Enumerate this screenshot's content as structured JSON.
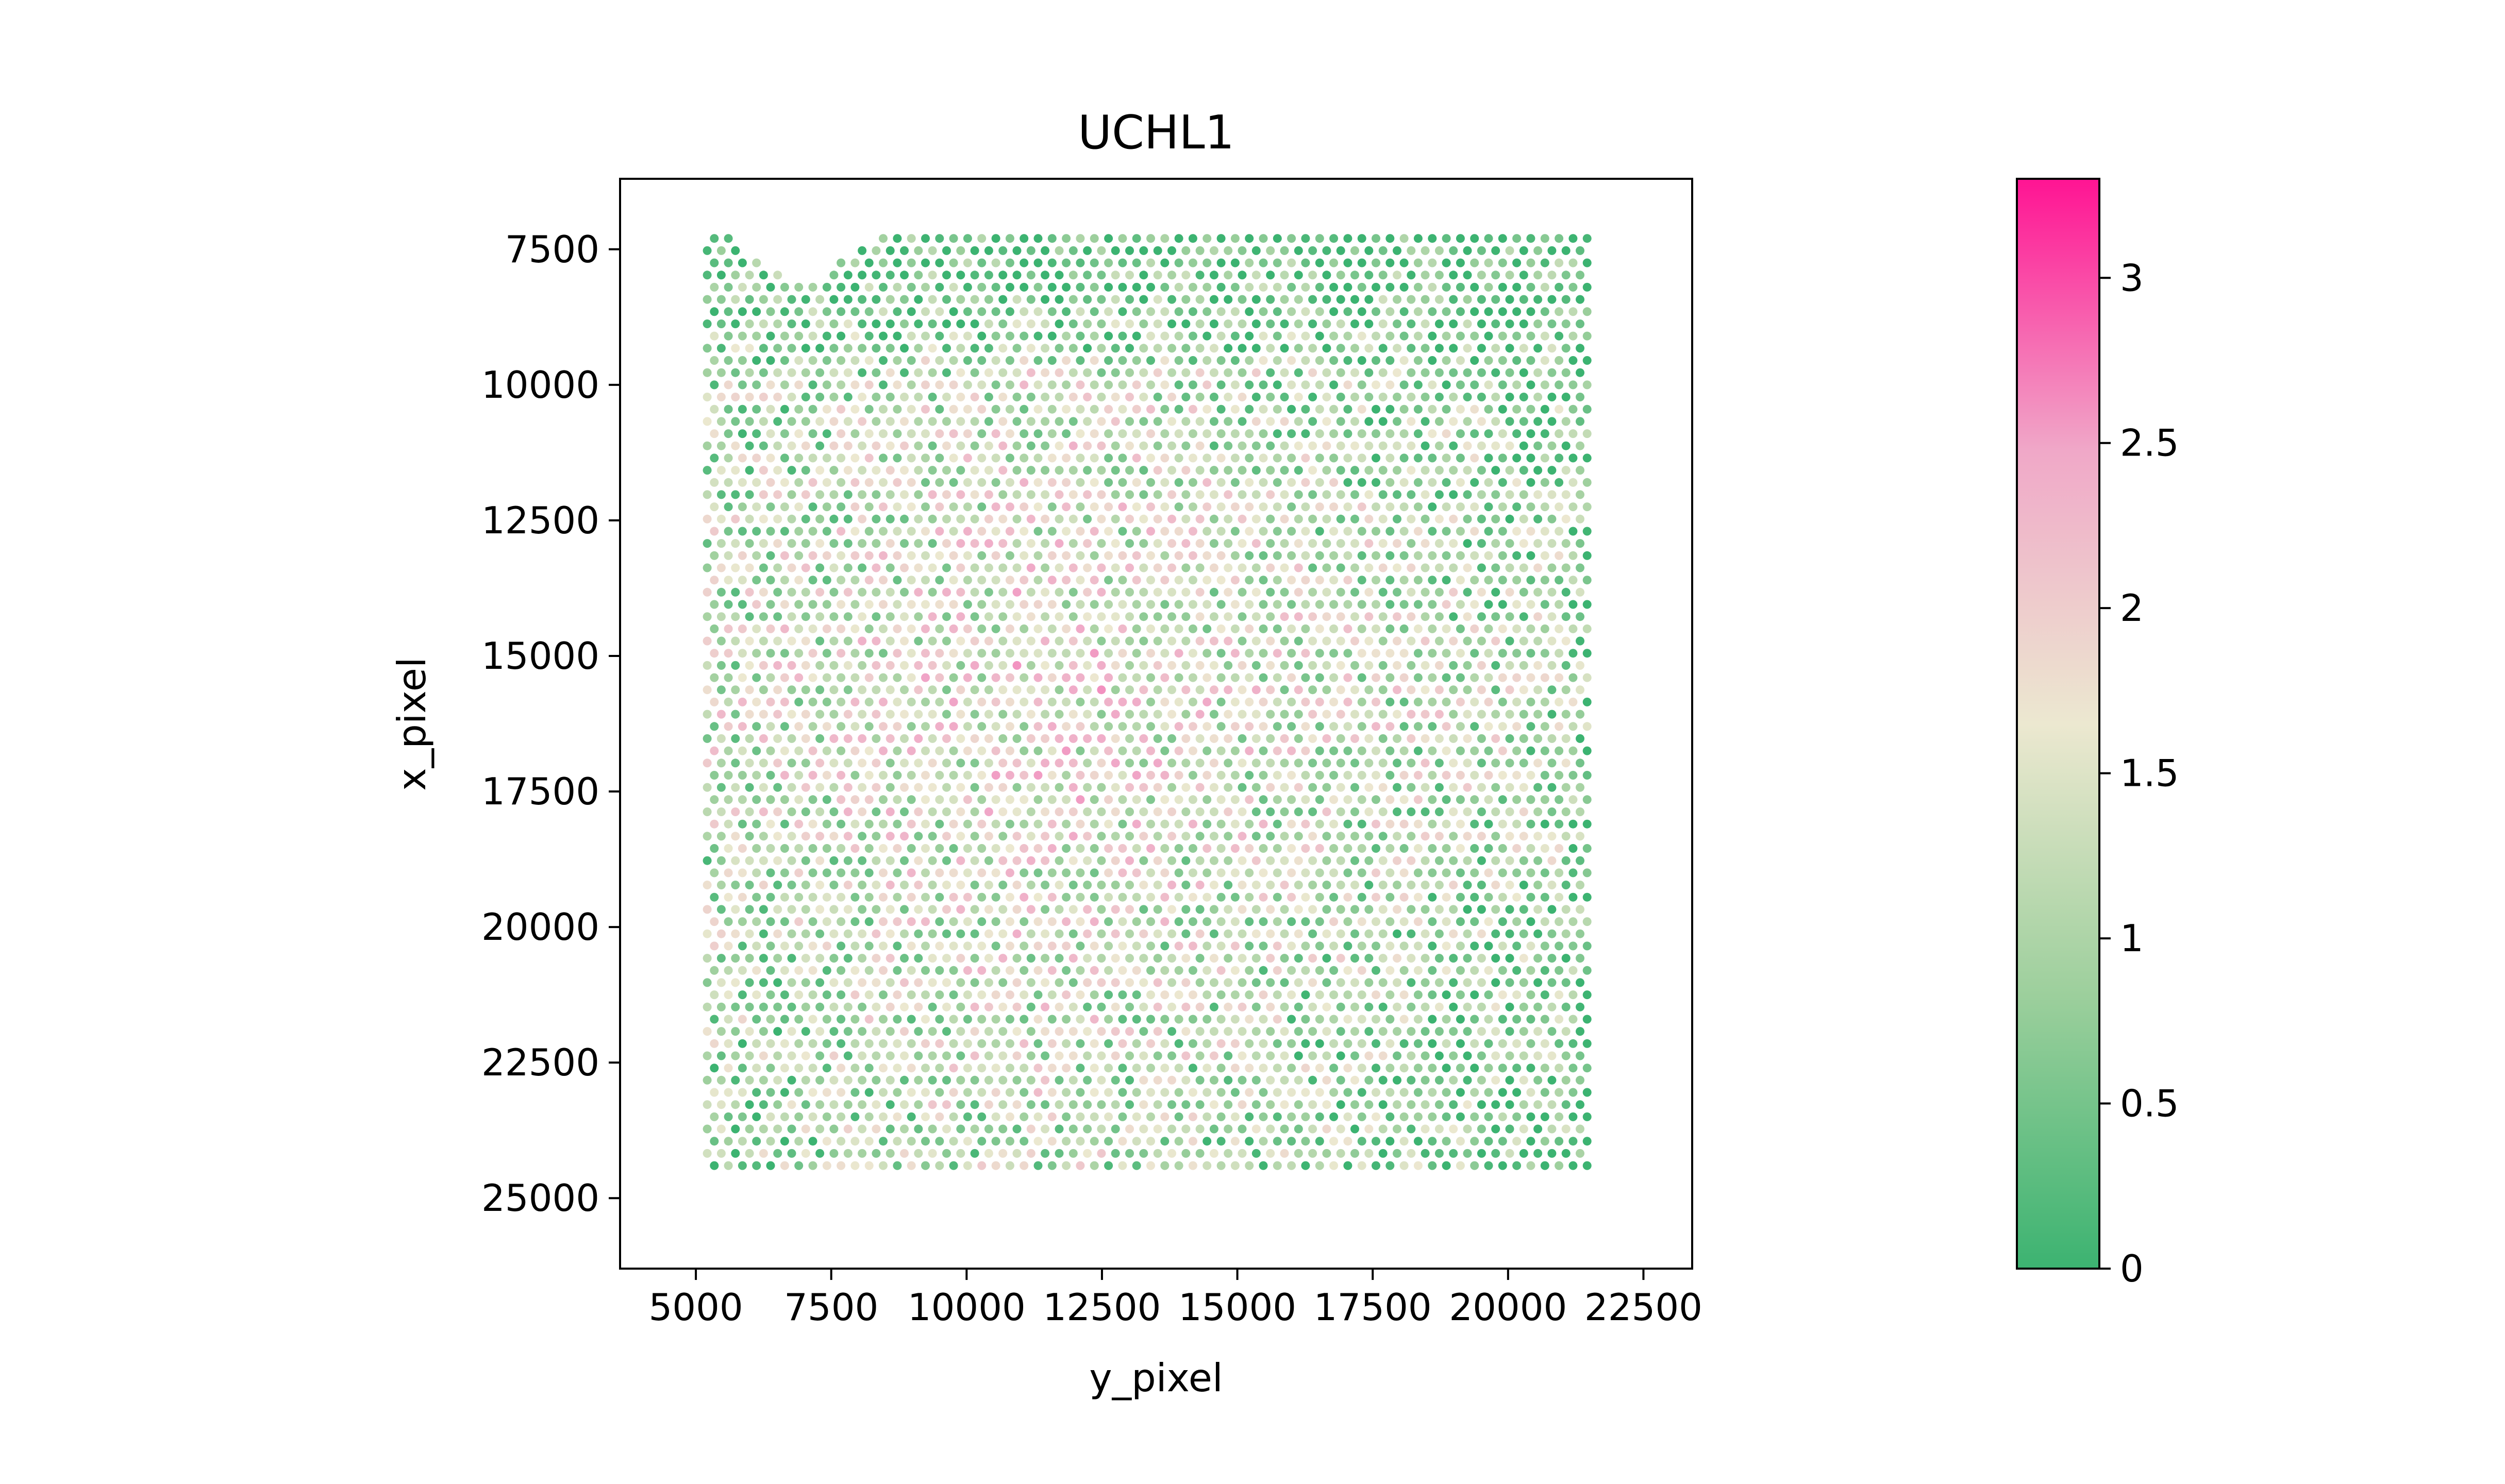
{
  "chart_data": {
    "type": "scatter",
    "title": "UCHL1",
    "xlabel": "y_pixel",
    "ylabel": "x_pixel",
    "xlim": [
      3600,
      23400
    ],
    "ylim": [
      26300,
      6200
    ],
    "y_inverted": true,
    "x_ticks": [
      "5000",
      "7500",
      "10000",
      "12500",
      "15000",
      "17500",
      "20000",
      "22500"
    ],
    "y_ticks": [
      "7500",
      "10000",
      "12500",
      "15000",
      "17500",
      "20000",
      "22500",
      "25000"
    ],
    "x_tick_values": [
      5000,
      7500,
      10000,
      12500,
      15000,
      17500,
      20000,
      22500
    ],
    "y_tick_values": [
      7500,
      10000,
      12500,
      15000,
      17500,
      20000,
      22500,
      25000
    ],
    "grid": false,
    "point_color": "expression",
    "colorbar": {
      "label": "",
      "vmin": 0,
      "vmax": 3.3,
      "ticks": [
        0,
        0.5,
        1,
        1.5,
        2,
        2.5,
        3
      ],
      "tick_labels": [
        "0",
        "0.5",
        "1",
        "1.5",
        "2",
        "2.5",
        "3"
      ],
      "colors": [
        "#3cb371",
        "#9ccf9c",
        "#ece8d0",
        "#f0a8c8",
        "#ff1493"
      ]
    },
    "tissue_region": {
      "top_boundary": [
        [
          5200,
          7300
        ],
        [
          5600,
          7300
        ],
        [
          6500,
          7900
        ],
        [
          7250,
          8200
        ],
        [
          7600,
          7650
        ],
        [
          8400,
          7300
        ],
        [
          22000,
          7300
        ]
      ],
      "left_boundary": [
        [
          5200,
          7300
        ],
        [
          4400,
          9700
        ],
        [
          4400,
          11600
        ],
        [
          4300,
          19800
        ],
        [
          4600,
          21200
        ],
        [
          4600,
          25300
        ]
      ],
      "right_boundary": [
        [
          22000,
          7300
        ],
        [
          22000,
          10000
        ],
        [
          22300,
          10300
        ],
        [
          22300,
          21400
        ],
        [
          22000,
          22700
        ],
        [
          22000,
          23400
        ],
        [
          21500,
          24500
        ]
      ],
      "bottom_boundary": [
        [
          4600,
          25300
        ],
        [
          6500,
          25500
        ],
        [
          9000,
          25400
        ],
        [
          12000,
          25000
        ],
        [
          15000,
          24700
        ],
        [
          18000,
          24400
        ],
        [
          21500,
          24500
        ]
      ],
      "mostly_low_expression": "y_pixel 5000-22500 near x_pixel 7300-9500; right edge y_pixel 21000-22300"
    }
  }
}
